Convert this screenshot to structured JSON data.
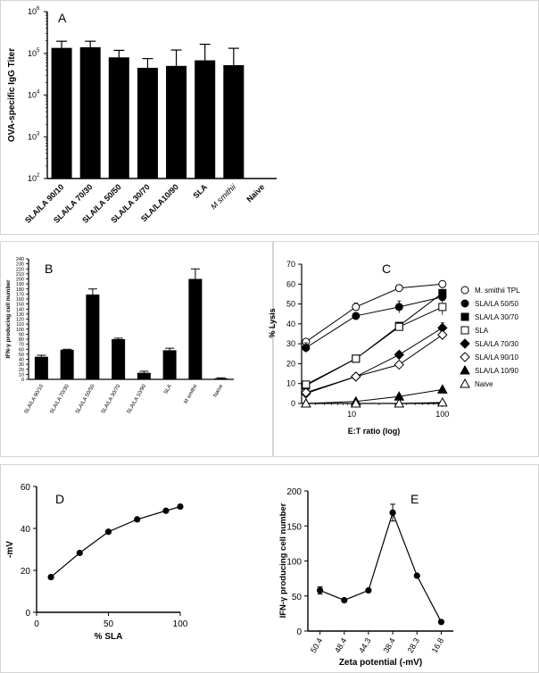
{
  "chart_data": [
    {
      "panel": "A",
      "type": "bar",
      "ylabel": "OVA-specific IgG Titer",
      "yscale": "log",
      "ylim": [
        100,
        1000000
      ],
      "ytick_bases": [
        "10",
        "10",
        "10",
        "10",
        "10"
      ],
      "ytick_exps": [
        "2",
        "3",
        "4",
        "5",
        "6"
      ],
      "categories": [
        "SLA/LA 90/10",
        "SLA/LA 70/30",
        "SLA/LA 50/50",
        "SLA/LA 30/70",
        "SLA/LA10/90",
        "SLA",
        "M smithii",
        "Naive"
      ],
      "values": [
        135000,
        140000,
        80000,
        45000,
        50000,
        68000,
        52000,
        0
      ],
      "errors": [
        195000,
        195000,
        118000,
        75000,
        120000,
        165000,
        132000,
        0
      ]
    },
    {
      "panel": "B",
      "type": "bar",
      "ylabel": "IFN-γ producing cell number",
      "ylim": [
        0,
        240
      ],
      "yticks": [
        "0",
        "10",
        "20",
        "30",
        "40",
        "50",
        "60",
        "70",
        "80",
        "90",
        "100",
        "110",
        "120",
        "130",
        "140",
        "150",
        "160",
        "170",
        "180",
        "190",
        "200",
        "210",
        "220",
        "230",
        "240"
      ],
      "categories": [
        "SLA/LA 90/10",
        "SLA/LA 70/30",
        "SLA/LA 50/50",
        "SLA/LA 30/70",
        "SLA/LA 10/90",
        "SLA",
        "M smithii",
        "Naive"
      ],
      "values": [
        45,
        59,
        169,
        80,
        13,
        58,
        200,
        2
      ],
      "errors": [
        48,
        60,
        180,
        82,
        16,
        62,
        220,
        3
      ]
    },
    {
      "panel": "C",
      "type": "line",
      "xlabel": "E:T ratio (log)",
      "ylabel": "% Lysis",
      "xscale": "log",
      "xlim": [
        2.8,
        110
      ],
      "ylim": [
        0,
        70
      ],
      "xticks": [
        "10",
        "100"
      ],
      "yticks": [
        "0",
        "10",
        "20",
        "30",
        "40",
        "50",
        "60",
        "70"
      ],
      "x": [
        3.125,
        11.1,
        33.3,
        100
      ],
      "series": [
        {
          "name": "M. smithii TPL",
          "marker": "circle-open",
          "values": [
            31,
            48.5,
            58,
            60
          ],
          "errors": [
            1.5,
            2,
            0.5,
            0.5
          ]
        },
        {
          "name": "SLA/LA 50/50",
          "marker": "circle-filled",
          "values": [
            28,
            44,
            48.5,
            53.5
          ],
          "errors": [
            2.5,
            1,
            3,
            2
          ]
        },
        {
          "name": "SLA/LA 30/70",
          "marker": "square-filled",
          "values": [
            9,
            22.5,
            39,
            55.5
          ],
          "errors": [
            0.5,
            0.5,
            1,
            1
          ]
        },
        {
          "name": "SLA",
          "marker": "square-open",
          "values": [
            9.5,
            22.5,
            38.5,
            48.5
          ],
          "errors": [
            0.5,
            1,
            1,
            4
          ]
        },
        {
          "name": "SLA/LA 70/30",
          "marker": "diamond-filled",
          "values": [
            5,
            13.5,
            24.5,
            38
          ],
          "errors": [
            0.5,
            0.5,
            0.5,
            2.5
          ]
        },
        {
          "name": "SLA/LA 90/10",
          "marker": "diamond-open",
          "values": [
            5.5,
            13.5,
            19.5,
            34.5
          ],
          "errors": [
            0.5,
            0.5,
            0.5,
            1
          ]
        },
        {
          "name": "SLA/LA 10/90",
          "marker": "triangle-filled",
          "values": [
            0,
            1,
            3.5,
            7
          ],
          "errors": [
            0.3,
            0.3,
            0.3,
            0.5
          ]
        },
        {
          "name": "Naive",
          "marker": "triangle-open",
          "values": [
            0,
            0,
            0,
            0.5
          ],
          "errors": [
            0,
            0,
            0,
            0.3
          ]
        }
      ]
    },
    {
      "panel": "D",
      "type": "line",
      "xlabel": "% SLA",
      "ylabel": "-mV",
      "xlim": [
        0,
        100
      ],
      "ylim": [
        0,
        60
      ],
      "xticks": [
        "0",
        "50",
        "100"
      ],
      "yticks": [
        "0",
        "20",
        "40",
        "60"
      ],
      "x": [
        10,
        30,
        50,
        70,
        90,
        100
      ],
      "values": [
        16.8,
        28.3,
        38.4,
        44.3,
        48.4,
        50.4
      ]
    },
    {
      "panel": "E",
      "type": "line",
      "xlabel": "Zeta potential (-mV)",
      "ylabel": "IFN-γ producing cell number",
      "ylim": [
        0,
        200
      ],
      "yticks": [
        "0",
        "50",
        "100",
        "150",
        "200"
      ],
      "categories": [
        "50.4",
        "48.4",
        "44.3",
        "38.4",
        "28.3",
        "16.8"
      ],
      "values": [
        58,
        44,
        58,
        169,
        79,
        13
      ],
      "errors": [
        5,
        1.5,
        1.5,
        12,
        1.5,
        1.5
      ]
    }
  ]
}
